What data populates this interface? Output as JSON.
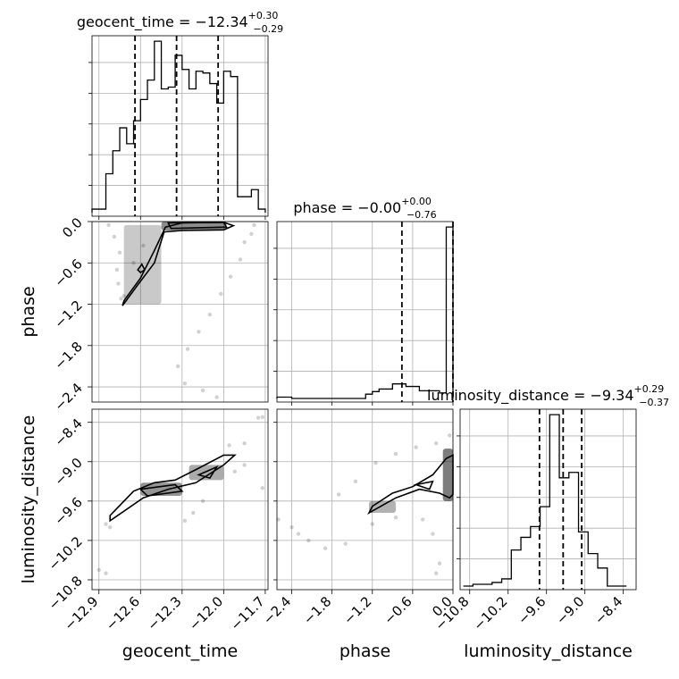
{
  "chart_data": {
    "type": "corner",
    "parameters": [
      "geocent_time",
      "phase",
      "luminosity_distance"
    ],
    "titles": [
      {
        "parameter": "geocent_time",
        "prefix": "geocent_time = ",
        "median": "−12.34",
        "plus": "+0.30",
        "minus": "−0.29"
      },
      {
        "parameter": "phase",
        "prefix": "phase = ",
        "median": "−0.00",
        "plus": "+0.00",
        "minus": "−0.76"
      },
      {
        "parameter": "luminosity_distance",
        "prefix": "luminosity_distance = ",
        "median": "−9.34",
        "plus": "+0.29",
        "minus": "−0.37"
      }
    ],
    "axes": {
      "geocent_time": {
        "label": "geocent_time",
        "range": [
          -12.95,
          -11.68
        ],
        "ticks": [
          -12.9,
          -12.6,
          -12.3,
          -12.0,
          -11.7
        ],
        "tick_labels": [
          "−12.9",
          "−12.6",
          "−12.3",
          "−12.0",
          "−11.7"
        ]
      },
      "phase": {
        "label": "phase",
        "range": [
          -2.62,
          0.0
        ],
        "ticks": [
          -2.4,
          -1.8,
          -1.2,
          -0.6,
          0.0
        ],
        "tick_labels": [
          "−2.4",
          "−1.8",
          "−1.2",
          "−0.6",
          "0.0"
        ]
      },
      "luminosity_distance": {
        "label": "luminosity_distance",
        "range": [
          -10.95,
          -8.2
        ],
        "ticks": [
          -10.8,
          -10.2,
          -9.6,
          -9.0,
          -8.4
        ],
        "tick_labels": [
          "−10.8",
          "−10.2",
          "−9.6",
          "−9.0",
          "−8.4"
        ]
      }
    },
    "histograms": [
      {
        "parameter": "geocent_time",
        "bin_edges": [
          -12.95,
          -12.9,
          -12.85,
          -12.8,
          -12.75,
          -12.7,
          -12.65,
          -12.6,
          -12.55,
          -12.5,
          -12.45,
          -12.4,
          -12.35,
          -12.3,
          -12.25,
          -12.2,
          -12.15,
          -12.1,
          -12.05,
          -12.0,
          -11.95,
          -11.9,
          -11.85,
          -11.8,
          -11.75,
          -11.7
        ],
        "counts": [
          0.02,
          0.02,
          0.22,
          0.35,
          0.48,
          0.39,
          0.52,
          0.64,
          0.75,
          0.97,
          0.7,
          0.71,
          0.89,
          0.81,
          0.7,
          0.8,
          0.79,
          0.73,
          0.62,
          0.8,
          0.77,
          0.09,
          0.09,
          0.13,
          0.02
        ],
        "quantiles": [
          -12.64,
          -12.34,
          -12.04
        ]
      },
      {
        "parameter": "phase",
        "bin_edges": [
          -2.62,
          -2.5,
          -2.4,
          -2.3,
          -2.2,
          -2.1,
          -2.0,
          -1.9,
          -1.8,
          -1.7,
          -1.6,
          -1.5,
          -1.4,
          -1.3,
          -1.2,
          -1.1,
          -1.0,
          -0.9,
          -0.8,
          -0.7,
          -0.6,
          -0.5,
          -0.4,
          -0.3,
          -0.2,
          -0.1,
          0.0
        ],
        "counts": [
          0.008,
          0.008,
          0.0,
          0.0,
          0.0,
          0.0,
          0.0,
          0.0,
          0.0,
          0.0,
          0.0,
          0.0,
          0.0,
          0.025,
          0.04,
          0.055,
          0.055,
          0.085,
          0.085,
          0.07,
          0.07,
          0.045,
          0.045,
          0.045,
          0.032,
          1.0
        ],
        "quantiles": [
          -0.76,
          0.0
        ]
      },
      {
        "parameter": "luminosity_distance",
        "bin_edges": [
          -10.9,
          -10.75,
          -10.6,
          -10.45,
          -10.3,
          -10.15,
          -10.0,
          -9.85,
          -9.7,
          -9.55,
          -9.4,
          -9.25,
          -9.1,
          -8.95,
          -8.8,
          -8.65,
          -8.5,
          -8.35
        ],
        "counts": [
          0.0,
          0.01,
          0.01,
          0.02,
          0.04,
          0.2,
          0.27,
          0.33,
          0.44,
          0.95,
          0.6,
          0.63,
          0.3,
          0.18,
          0.1,
          0.0,
          0.0
        ],
        "quantiles": [
          -9.71,
          -9.34,
          -9.05
        ]
      }
    ],
    "pairs": [
      {
        "x": "geocent_time",
        "y": "phase",
        "contours": [
          [
            [
              -12.72,
              -1.15
            ],
            [
              -12.6,
              -0.82
            ],
            [
              -12.5,
              -0.42
            ],
            [
              -12.42,
              -0.08
            ],
            [
              -12.3,
              -0.02
            ],
            [
              -12.0,
              -0.01
            ],
            [
              -11.93,
              -0.06
            ],
            [
              -12.0,
              -0.12
            ],
            [
              -12.3,
              -0.13
            ],
            [
              -12.43,
              -0.15
            ],
            [
              -12.5,
              -0.6
            ],
            [
              -12.62,
              -0.92
            ],
            [
              -12.73,
              -1.22
            ]
          ],
          [
            [
              -12.62,
              -0.7
            ],
            [
              -12.59,
              -0.62
            ],
            [
              -12.57,
              -0.7
            ],
            [
              -12.6,
              -0.74
            ]
          ],
          [
            [
              -12.4,
              -0.02
            ],
            [
              -12.0,
              -0.01
            ],
            [
              -11.98,
              -0.08
            ],
            [
              -12.38,
              -0.1
            ]
          ]
        ],
        "dense_regions": [
          {
            "x": [
              -12.45,
              -11.98
            ],
            "y": [
              -0.13,
              -0.0
            ],
            "level": 0.75
          },
          {
            "x": [
              -12.72,
              -12.45
            ],
            "y": [
              -1.2,
              -0.05
            ],
            "level": 0.35
          }
        ],
        "scatter": [
          [
            -12.83,
            -0.05
          ],
          [
            -12.79,
            -0.22
          ],
          [
            -12.75,
            -0.45
          ],
          [
            -12.77,
            -0.7
          ],
          [
            -12.76,
            -0.9
          ],
          [
            -12.72,
            -1.08
          ],
          [
            -12.74,
            -1.12
          ],
          [
            -11.85,
            -0.3
          ],
          [
            -11.88,
            -0.55
          ],
          [
            -11.95,
            -0.8
          ],
          [
            -12.02,
            -1.05
          ],
          [
            -12.1,
            -1.35
          ],
          [
            -12.18,
            -1.6
          ],
          [
            -12.26,
            -1.85
          ],
          [
            -12.33,
            -2.1
          ],
          [
            -12.28,
            -2.35
          ],
          [
            -12.15,
            -2.45
          ],
          [
            -12.05,
            -2.55
          ],
          [
            -11.78,
            -0.05
          ],
          [
            -11.8,
            -0.18
          ],
          [
            -12.65,
            -0.6
          ],
          [
            -12.58,
            -0.35
          ]
        ]
      },
      {
        "x": "geocent_time",
        "y": "luminosity_distance",
        "contours": [
          [
            [
              -12.82,
              -9.82
            ],
            [
              -12.65,
              -9.45
            ],
            [
              -12.5,
              -9.32
            ],
            [
              -12.35,
              -9.28
            ],
            [
              -12.2,
              -9.12
            ],
            [
              -12.0,
              -8.9
            ],
            [
              -11.92,
              -8.9
            ],
            [
              -12.0,
              -9.05
            ],
            [
              -12.2,
              -9.32
            ],
            [
              -12.4,
              -9.42
            ],
            [
              -12.58,
              -9.55
            ],
            [
              -12.82,
              -9.9
            ]
          ],
          [
            [
              -12.6,
              -9.42
            ],
            [
              -12.35,
              -9.35
            ],
            [
              -12.3,
              -9.45
            ],
            [
              -12.55,
              -9.52
            ]
          ],
          [
            [
              -12.18,
              -9.2
            ],
            [
              -12.05,
              -9.08
            ],
            [
              -12.1,
              -9.25
            ]
          ]
        ],
        "dense_regions": [
          {
            "x": [
              -12.6,
              -12.3
            ],
            "y": [
              -9.52,
              -9.32
            ],
            "level": 0.7
          },
          {
            "x": [
              -12.25,
              -12.0
            ],
            "y": [
              -9.28,
              -9.05
            ],
            "level": 0.55
          }
        ],
        "scatter": [
          [
            -12.82,
            -10.0
          ],
          [
            -12.85,
            -9.95
          ],
          [
            -12.9,
            -10.65
          ],
          [
            -12.85,
            -10.7
          ],
          [
            -11.96,
            -8.75
          ],
          [
            -11.85,
            -8.72
          ],
          [
            -11.75,
            -8.33
          ],
          [
            -11.72,
            -8.32
          ],
          [
            -12.15,
            -9.6
          ],
          [
            -12.22,
            -9.78
          ],
          [
            -12.28,
            -9.9
          ],
          [
            -11.92,
            -9.15
          ],
          [
            -11.85,
            -9.05
          ],
          [
            -11.72,
            -9.4
          ]
        ]
      },
      {
        "x": "phase",
        "y": "luminosity_distance",
        "contours": [
          [
            [
              -1.25,
              -9.78
            ],
            [
              -0.85,
              -9.55
            ],
            [
              -0.5,
              -9.42
            ],
            [
              -0.2,
              -9.48
            ],
            [
              -0.05,
              -9.55
            ],
            [
              0.0,
              -9.5
            ],
            [
              0.0,
              -8.9
            ],
            [
              -0.1,
              -8.95
            ],
            [
              -0.3,
              -9.2
            ],
            [
              -0.6,
              -9.38
            ],
            [
              -0.9,
              -9.48
            ],
            [
              -1.2,
              -9.68
            ]
          ],
          [
            [
              -0.55,
              -9.35
            ],
            [
              -0.3,
              -9.3
            ],
            [
              -0.35,
              -9.42
            ]
          ]
        ],
        "dense_regions": [
          {
            "x": [
              -0.15,
              0.0
            ],
            "y": [
              -9.6,
              -8.8
            ],
            "level": 0.85
          },
          {
            "x": [
              -1.25,
              -0.85
            ],
            "y": [
              -9.78,
              -9.6
            ],
            "level": 0.5
          }
        ],
        "scatter": [
          [
            -2.6,
            -9.88
          ],
          [
            -2.4,
            -10.0
          ],
          [
            -2.15,
            -10.2
          ],
          [
            -1.9,
            -10.32
          ],
          [
            -1.6,
            -10.25
          ],
          [
            -1.2,
            -9.95
          ],
          [
            -0.85,
            -9.85
          ],
          [
            -0.45,
            -9.88
          ],
          [
            -0.3,
            -10.1
          ],
          [
            -0.2,
            -10.55
          ],
          [
            -0.25,
            -10.7
          ],
          [
            -1.7,
            -9.5
          ],
          [
            -1.45,
            -9.3
          ],
          [
            -1.15,
            -9.02
          ],
          [
            -0.85,
            -8.88
          ],
          [
            -0.55,
            -8.78
          ],
          [
            -0.25,
            -8.72
          ],
          [
            -0.05,
            -8.6
          ],
          [
            -2.3,
            -10.1
          ]
        ]
      }
    ]
  }
}
